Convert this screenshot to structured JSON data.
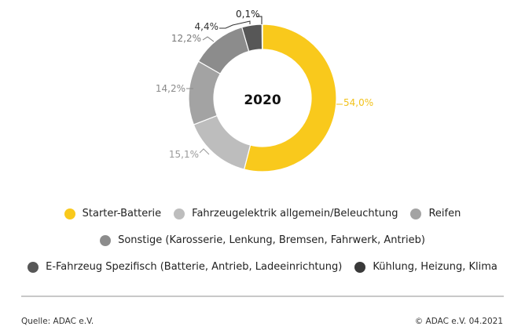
{
  "chart_data": {
    "type": "pie",
    "donut": true,
    "center_label": "2020",
    "categories": [
      "Starter-Batterie",
      "Fahrzeugelektrik allgemein/Beleuchtung",
      "Reifen",
      "Sonstige (Karosserie, Lenkung, Bremsen, Fahrwerk, Antrieb)",
      "E-Fahrzeug Spezifisch (Batterie, Antrieb, Ladeeinrichtung)",
      "Kühlung, Heizung, Klima"
    ],
    "values": [
      54.0,
      15.1,
      14.2,
      12.2,
      4.4,
      0.1
    ],
    "data_labels": [
      "54,0%",
      "15,1%",
      "14,2%",
      "12,2%",
      "4,4%",
      "0,1%"
    ],
    "colors": [
      "#f9c91c",
      "#bdbdbd",
      "#a3a3a3",
      "#8c8c8c",
      "#575757",
      "#3a3a3a"
    ],
    "label_colors": [
      "#f2c21a",
      "#9a9a9a",
      "#8a8a8a",
      "#7a7a7a",
      "#333333",
      "#222222"
    ],
    "legend_placement": "bottom"
  },
  "legend": {
    "rows": [
      [
        {
          "label": "Starter-Batterie",
          "color": "#f9c91c"
        },
        {
          "label": "Fahrzeugelektrik allgemein/Beleuchtung",
          "color": "#bdbdbd"
        },
        {
          "label": "Reifen",
          "color": "#a3a3a3"
        }
      ],
      [
        {
          "label": "Sonstige (Karosserie, Lenkung, Bremsen, Fahrwerk, Antrieb)",
          "color": "#8c8c8c"
        }
      ],
      [
        {
          "label": "E-Fahrzeug Spezifisch (Batterie, Antrieb, Ladeeinrichtung)",
          "color": "#575757"
        },
        {
          "label": "Kühlung, Heizung, Klima",
          "color": "#3a3a3a"
        }
      ]
    ]
  },
  "footer": {
    "source": "Quelle: ADAC e.V.",
    "copyright": "© ADAC e.V. 04.2021"
  }
}
